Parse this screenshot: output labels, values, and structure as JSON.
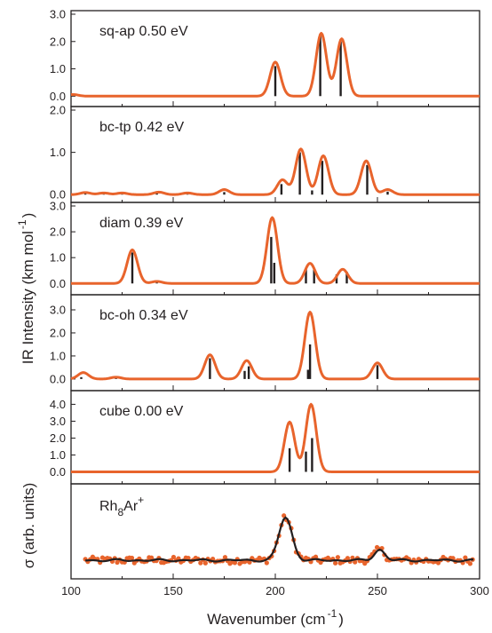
{
  "figure": {
    "xlabel_main": "Wavenumber (cm",
    "xlabel_sup": "-1",
    "xlabel_close": ")",
    "ylabel_main": "IR Intensity (km mol",
    "ylabel_sup": "-1",
    "ylabel_close": ")",
    "sigma_ylabel": "σ (arb. units)"
  },
  "colors": {
    "curve": "#e8642c",
    "stick": "#231f20",
    "frame": "#231f20",
    "exp_line": "#231f20",
    "exp_points": "#e8642c"
  },
  "chart_data": [
    {
      "type": "line",
      "label": "sq-ap 0.50 eV",
      "xlim": [
        100,
        300
      ],
      "ylim": [
        -0.25,
        3.0
      ],
      "yticks": [
        "0.0",
        "1.0",
        "2.0",
        "3.0"
      ],
      "fwhm": 6,
      "baseline_bumps": [
        {
          "x": 101,
          "y": 0.06
        }
      ],
      "sticks": [
        {
          "x": 200,
          "y": 1.1
        },
        {
          "x": 222,
          "y": 2.2
        },
        {
          "x": 232,
          "y": 2.0
        }
      ],
      "peak_curve_heights": [
        {
          "x": 200,
          "y": 1.25
        },
        {
          "x": 222.5,
          "y": 2.3
        },
        {
          "x": 232.5,
          "y": 2.1
        }
      ]
    },
    {
      "type": "line",
      "label": "bc-tp 0.42 eV",
      "xlim": [
        100,
        300
      ],
      "ylim": [
        -0.1,
        2.0
      ],
      "yticks": [
        "0.0",
        "1.0",
        "2.0"
      ],
      "fwhm": 6,
      "sticks": [
        {
          "x": 107,
          "y": 0.03
        },
        {
          "x": 116,
          "y": 0.03
        },
        {
          "x": 125,
          "y": 0.03
        },
        {
          "x": 142,
          "y": 0.04
        },
        {
          "x": 157,
          "y": 0.03
        },
        {
          "x": 175,
          "y": 0.06
        },
        {
          "x": 203,
          "y": 0.25
        },
        {
          "x": 212,
          "y": 1.0
        },
        {
          "x": 218,
          "y": 0.1
        },
        {
          "x": 223,
          "y": 0.8
        },
        {
          "x": 245,
          "y": 0.7
        },
        {
          "x": 255,
          "y": 0.07
        }
      ],
      "peak_curve_heights": [
        {
          "x": 107,
          "y": 0.05
        },
        {
          "x": 116,
          "y": 0.04
        },
        {
          "x": 125,
          "y": 0.04
        },
        {
          "x": 143,
          "y": 0.06
        },
        {
          "x": 157,
          "y": 0.04
        },
        {
          "x": 175,
          "y": 0.12
        },
        {
          "x": 203.5,
          "y": 0.35
        },
        {
          "x": 212.5,
          "y": 1.08
        },
        {
          "x": 223.5,
          "y": 0.92
        },
        {
          "x": 244.5,
          "y": 0.8
        },
        {
          "x": 255,
          "y": 0.12
        }
      ]
    },
    {
      "type": "line",
      "label": "diam 0.39 eV",
      "xlim": [
        100,
        300
      ],
      "ylim": [
        -0.3,
        3.0
      ],
      "yticks": [
        "0.0",
        "1.0",
        "2.0",
        "3.0"
      ],
      "fwhm": 6,
      "sticks": [
        {
          "x": 130,
          "y": 1.2
        },
        {
          "x": 142,
          "y": 0.05
        },
        {
          "x": 198,
          "y": 1.8
        },
        {
          "x": 199.5,
          "y": 0.8
        },
        {
          "x": 215,
          "y": 0.6
        },
        {
          "x": 219,
          "y": 0.6
        },
        {
          "x": 230,
          "y": 0.35
        },
        {
          "x": 235,
          "y": 0.45
        }
      ],
      "peak_curve_heights": [
        {
          "x": 130,
          "y": 1.3
        },
        {
          "x": 142,
          "y": 0.08
        },
        {
          "x": 198.5,
          "y": 2.55
        },
        {
          "x": 217,
          "y": 0.78
        },
        {
          "x": 233,
          "y": 0.55
        }
      ]
    },
    {
      "type": "line",
      "label": "bc-oh 0.34 eV",
      "xlim": [
        100,
        300
      ],
      "ylim": [
        -0.35,
        3.5
      ],
      "yticks": [
        "0.0",
        "1.0",
        "2.0",
        "3.0"
      ],
      "fwhm": 6,
      "sticks": [
        {
          "x": 105,
          "y": 0.08
        },
        {
          "x": 122,
          "y": 0.04
        },
        {
          "x": 168,
          "y": 0.9
        },
        {
          "x": 185,
          "y": 0.35
        },
        {
          "x": 187,
          "y": 0.55
        },
        {
          "x": 216,
          "y": 0.4
        },
        {
          "x": 217,
          "y": 1.5
        },
        {
          "x": 250,
          "y": 0.6
        }
      ],
      "peak_curve_heights": [
        {
          "x": 106,
          "y": 0.28
        },
        {
          "x": 122,
          "y": 0.08
        },
        {
          "x": 168,
          "y": 1.05
        },
        {
          "x": 186,
          "y": 0.8
        },
        {
          "x": 217,
          "y": 2.9
        },
        {
          "x": 250,
          "y": 0.7
        }
      ]
    },
    {
      "type": "line",
      "label": "cube 0.00 eV",
      "xlim": [
        100,
        300
      ],
      "ylim": [
        -0.5,
        4.6
      ],
      "yticks": [
        "0.0",
        "1.0",
        "2.0",
        "3.0",
        "4.0"
      ],
      "fwhm": 6,
      "sticks": [
        {
          "x": 207,
          "y": 1.4
        },
        {
          "x": 215,
          "y": 1.2
        },
        {
          "x": 218,
          "y": 2.0
        }
      ],
      "peak_curve_heights": [
        {
          "x": 207,
          "y": 2.95
        },
        {
          "x": 217.5,
          "y": 4.0
        }
      ]
    },
    {
      "type": "scatter",
      "label_main": "Rh",
      "label_sub1": "8",
      "label_mid": "Ar",
      "label_sup": "+",
      "xlim": [
        100,
        300
      ],
      "ylim": [
        -0.35,
        1.7
      ],
      "xticks": [
        "100",
        "150",
        "200",
        "250",
        "300"
      ],
      "peaks": [
        {
          "x": 205,
          "y": 1.0,
          "w": 3.2
        },
        {
          "x": 251,
          "y": 0.25,
          "w": 2.5
        }
      ],
      "noise_amplitude": 0.05
    }
  ]
}
